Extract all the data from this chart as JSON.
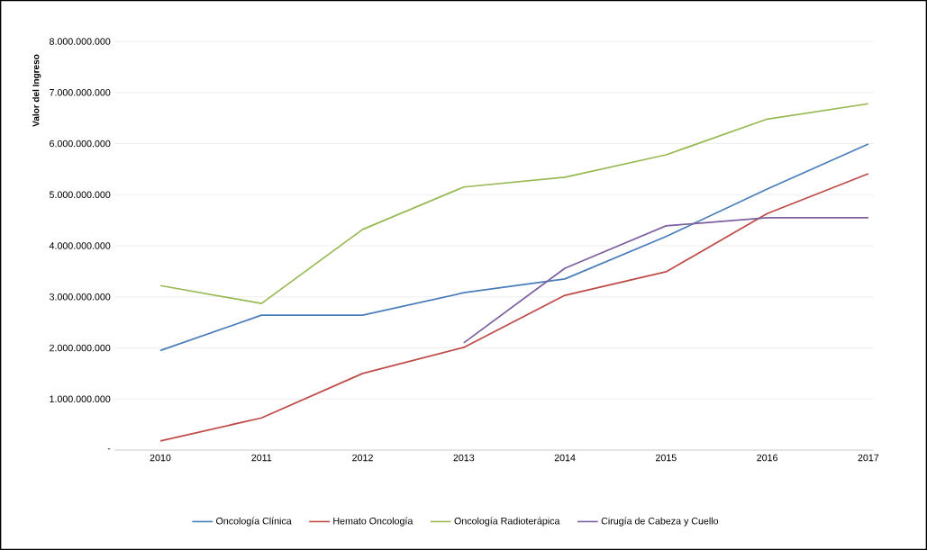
{
  "chart_data": {
    "type": "line",
    "ylabel": "Valor del Ingreso",
    "categories": [
      "2010",
      "2011",
      "2012",
      "2013",
      "2014",
      "2015",
      "2016",
      "2017"
    ],
    "series": [
      {
        "name": "Oncología Clínica",
        "color": "#4a7ebb",
        "values": [
          1950000000,
          2640000000,
          2640000000,
          3080000000,
          3350000000,
          4180000000,
          5110000000,
          5990000000
        ]
      },
      {
        "name": "Hemato Oncología",
        "color": "#be4b48",
        "values": [
          180000000,
          630000000,
          1500000000,
          2010000000,
          3030000000,
          3490000000,
          4630000000,
          5410000000
        ]
      },
      {
        "name": "Oncología Radioterápica",
        "color": "#98b954",
        "values": [
          3220000000,
          2870000000,
          4320000000,
          5150000000,
          5340000000,
          5780000000,
          6480000000,
          6780000000
        ]
      },
      {
        "name": "Cirugía de Cabeza y Cuello",
        "color": "#7d60a0",
        "values": [
          null,
          null,
          null,
          2100000000,
          3560000000,
          4390000000,
          4550000000,
          4550000000
        ]
      }
    ],
    "ylim": [
      0,
      8000000000
    ],
    "yticks": [
      {
        "value": 0,
        "label": "-"
      },
      {
        "value": 1000000000,
        "label": "1.000.000.000"
      },
      {
        "value": 2000000000,
        "label": "2.000.000.000"
      },
      {
        "value": 3000000000,
        "label": "3.000.000.000"
      },
      {
        "value": 4000000000,
        "label": "4.000.000.000"
      },
      {
        "value": 5000000000,
        "label": "5.000.000.000"
      },
      {
        "value": 6000000000,
        "label": "6.000.000.000"
      },
      {
        "value": 7000000000,
        "label": "7.000.000.000"
      },
      {
        "value": 8000000000,
        "label": "8.000.000.000"
      }
    ],
    "grid": "y",
    "legend": "bottom",
    "line_style": "solid"
  }
}
